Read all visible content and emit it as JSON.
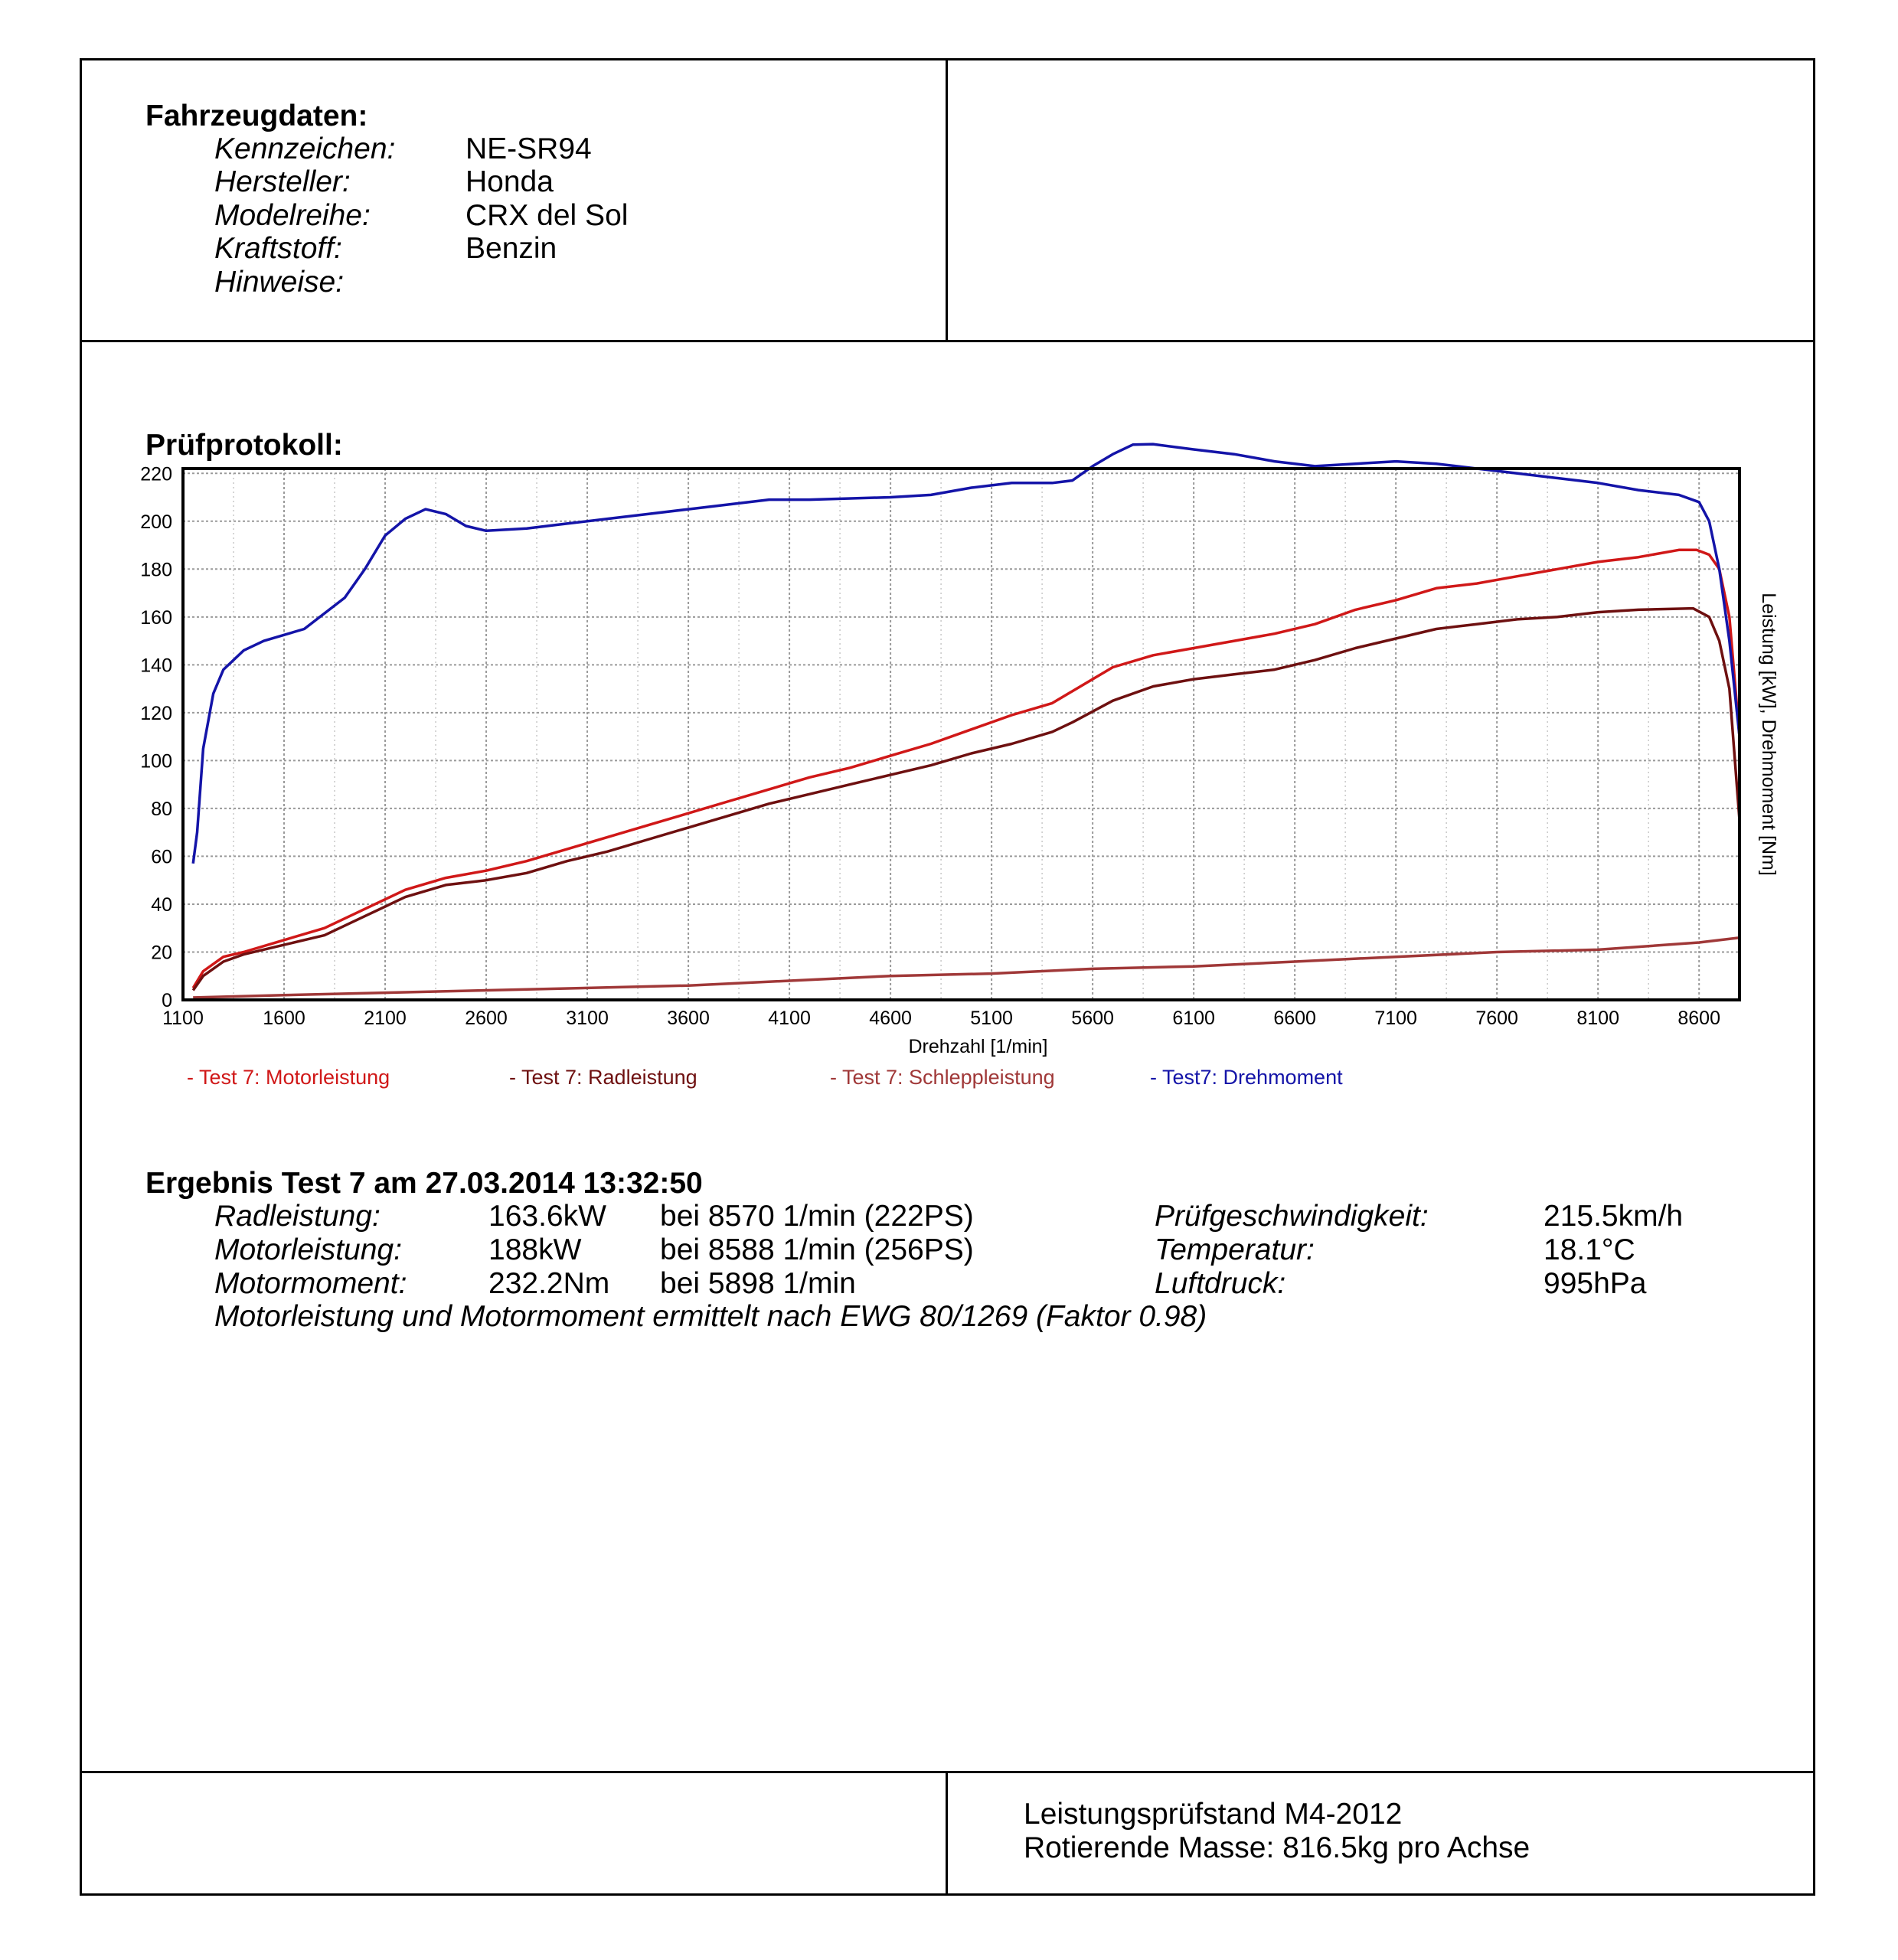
{
  "vehicle": {
    "heading": "Fahrzeugdaten:",
    "fields": [
      {
        "label": "Kennzeichen:",
        "value": "NE-SR94"
      },
      {
        "label": "Hersteller:",
        "value": "Honda"
      },
      {
        "label": "Modelreihe:",
        "value": "CRX del Sol"
      },
      {
        "label": "Kraftstoff:",
        "value": "Benzin"
      },
      {
        "label": "Hinweise:",
        "value": ""
      }
    ]
  },
  "protocol": {
    "heading": "Prüfprotokoll:"
  },
  "chart_data": {
    "type": "line",
    "title": "",
    "xlabel": "Drehzahl [1/min]",
    "ylabel": "Leistung [kW], Drehmoment [Nm]",
    "xlim": [
      1100,
      8800
    ],
    "ylim": [
      0,
      222
    ],
    "xticks": [
      1100,
      1600,
      2100,
      2600,
      3100,
      3600,
      4100,
      4600,
      5100,
      5600,
      6100,
      6600,
      7100,
      7600,
      8100,
      8600
    ],
    "yticks": [
      0,
      20,
      40,
      60,
      80,
      100,
      120,
      140,
      160,
      180,
      200,
      220
    ],
    "grid": true,
    "legend_position": "bottom",
    "series": [
      {
        "name": "- Test 7: Motorleistung",
        "color": "#d01818",
        "points": [
          [
            1150,
            5
          ],
          [
            1200,
            12
          ],
          [
            1300,
            18
          ],
          [
            1400,
            20
          ],
          [
            1600,
            25
          ],
          [
            1800,
            30
          ],
          [
            2000,
            38
          ],
          [
            2200,
            46
          ],
          [
            2400,
            51
          ],
          [
            2600,
            54
          ],
          [
            2800,
            58
          ],
          [
            3000,
            63
          ],
          [
            3200,
            68
          ],
          [
            3400,
            73
          ],
          [
            3600,
            78
          ],
          [
            3800,
            83
          ],
          [
            4000,
            88
          ],
          [
            4200,
            93
          ],
          [
            4400,
            97
          ],
          [
            4600,
            102
          ],
          [
            4800,
            107
          ],
          [
            5000,
            113
          ],
          [
            5200,
            119
          ],
          [
            5400,
            124
          ],
          [
            5500,
            129
          ],
          [
            5700,
            139
          ],
          [
            5900,
            144
          ],
          [
            6100,
            147
          ],
          [
            6300,
            150
          ],
          [
            6500,
            153
          ],
          [
            6700,
            157
          ],
          [
            6900,
            163
          ],
          [
            7100,
            167
          ],
          [
            7300,
            172
          ],
          [
            7500,
            174
          ],
          [
            7700,
            177
          ],
          [
            7900,
            180
          ],
          [
            8100,
            183
          ],
          [
            8300,
            185
          ],
          [
            8500,
            188
          ],
          [
            8588,
            188
          ],
          [
            8650,
            186
          ],
          [
            8700,
            180
          ],
          [
            8750,
            160
          ],
          [
            8800,
            110
          ]
        ]
      },
      {
        "name": "- Test 7: Radleistung",
        "color": "#6e1010",
        "points": [
          [
            1150,
            4
          ],
          [
            1200,
            10
          ],
          [
            1300,
            16
          ],
          [
            1400,
            19
          ],
          [
            1600,
            23
          ],
          [
            1800,
            27
          ],
          [
            2000,
            35
          ],
          [
            2200,
            43
          ],
          [
            2400,
            48
          ],
          [
            2600,
            50
          ],
          [
            2800,
            53
          ],
          [
            3000,
            58
          ],
          [
            3200,
            62
          ],
          [
            3400,
            67
          ],
          [
            3600,
            72
          ],
          [
            3800,
            77
          ],
          [
            4000,
            82
          ],
          [
            4200,
            86
          ],
          [
            4400,
            90
          ],
          [
            4600,
            94
          ],
          [
            4800,
            98
          ],
          [
            5000,
            103
          ],
          [
            5200,
            107
          ],
          [
            5400,
            112
          ],
          [
            5500,
            116
          ],
          [
            5700,
            125
          ],
          [
            5900,
            131
          ],
          [
            6100,
            134
          ],
          [
            6300,
            136
          ],
          [
            6500,
            138
          ],
          [
            6700,
            142
          ],
          [
            6900,
            147
          ],
          [
            7100,
            151
          ],
          [
            7300,
            155
          ],
          [
            7500,
            157
          ],
          [
            7700,
            159
          ],
          [
            7900,
            160
          ],
          [
            8100,
            162
          ],
          [
            8300,
            163
          ],
          [
            8570,
            163.6
          ],
          [
            8650,
            160
          ],
          [
            8700,
            150
          ],
          [
            8750,
            130
          ],
          [
            8800,
            75
          ]
        ]
      },
      {
        "name": "- Test 7: Schleppleistung",
        "color": "#a03838",
        "points": [
          [
            1150,
            1
          ],
          [
            1600,
            2
          ],
          [
            2100,
            3
          ],
          [
            2600,
            4
          ],
          [
            3100,
            5
          ],
          [
            3600,
            6
          ],
          [
            4100,
            8
          ],
          [
            4600,
            10
          ],
          [
            5100,
            11
          ],
          [
            5600,
            13
          ],
          [
            6100,
            14
          ],
          [
            6600,
            16
          ],
          [
            7100,
            18
          ],
          [
            7600,
            20
          ],
          [
            8100,
            21
          ],
          [
            8600,
            24
          ],
          [
            8800,
            26
          ]
        ]
      },
      {
        "name": "- Test7: Drehmoment",
        "color": "#1414a8",
        "points": [
          [
            1150,
            57
          ],
          [
            1170,
            70
          ],
          [
            1200,
            105
          ],
          [
            1250,
            128
          ],
          [
            1300,
            138
          ],
          [
            1400,
            146
          ],
          [
            1500,
            150
          ],
          [
            1700,
            155
          ],
          [
            1900,
            168
          ],
          [
            2000,
            180
          ],
          [
            2100,
            194
          ],
          [
            2200,
            201
          ],
          [
            2300,
            205
          ],
          [
            2400,
            203
          ],
          [
            2500,
            198
          ],
          [
            2600,
            196
          ],
          [
            2800,
            197
          ],
          [
            3000,
            199
          ],
          [
            3200,
            201
          ],
          [
            3400,
            203
          ],
          [
            3600,
            205
          ],
          [
            3800,
            207
          ],
          [
            4000,
            209
          ],
          [
            4200,
            209
          ],
          [
            4600,
            210
          ],
          [
            4800,
            211
          ],
          [
            5000,
            214
          ],
          [
            5200,
            216
          ],
          [
            5400,
            216
          ],
          [
            5500,
            217
          ],
          [
            5600,
            223
          ],
          [
            5700,
            228
          ],
          [
            5800,
            232
          ],
          [
            5898,
            232.2
          ],
          [
            6100,
            230
          ],
          [
            6300,
            228
          ],
          [
            6500,
            225
          ],
          [
            6700,
            223
          ],
          [
            6900,
            224
          ],
          [
            7100,
            225
          ],
          [
            7300,
            224
          ],
          [
            7500,
            222
          ],
          [
            7700,
            220
          ],
          [
            7900,
            218
          ],
          [
            8100,
            216
          ],
          [
            8300,
            213
          ],
          [
            8500,
            211
          ],
          [
            8600,
            208
          ],
          [
            8650,
            200
          ],
          [
            8700,
            180
          ],
          [
            8750,
            150
          ],
          [
            8800,
            110
          ]
        ]
      }
    ]
  },
  "result": {
    "heading": "Ergebnis Test 7 am 27.03.2014 13:32:50",
    "rows": [
      {
        "label": "Radleistung:",
        "value": "163.6kW",
        "detail": "bei 8570 1/min (222PS)"
      },
      {
        "label": "Motorleistung:",
        "value": "188kW",
        "detail": "bei 8588 1/min (256PS)"
      },
      {
        "label": "Motormoment:",
        "value": "232.2Nm",
        "detail": "bei 5898 1/min"
      }
    ],
    "conditions": [
      {
        "label": "Prüfgeschwindigkeit:",
        "value": "215.5km/h"
      },
      {
        "label": "Temperatur:",
        "value": "18.1°C"
      },
      {
        "label": "Luftdruck:",
        "value": "995hPa"
      }
    ],
    "note": "Motorleistung und Motormoment ermittelt nach EWG 80/1269 (Faktor 0.98)"
  },
  "footer": {
    "line1": "Leistungsprüfstand M4-2012",
    "line2": "Rotierende Masse: 816.5kg pro Achse"
  }
}
